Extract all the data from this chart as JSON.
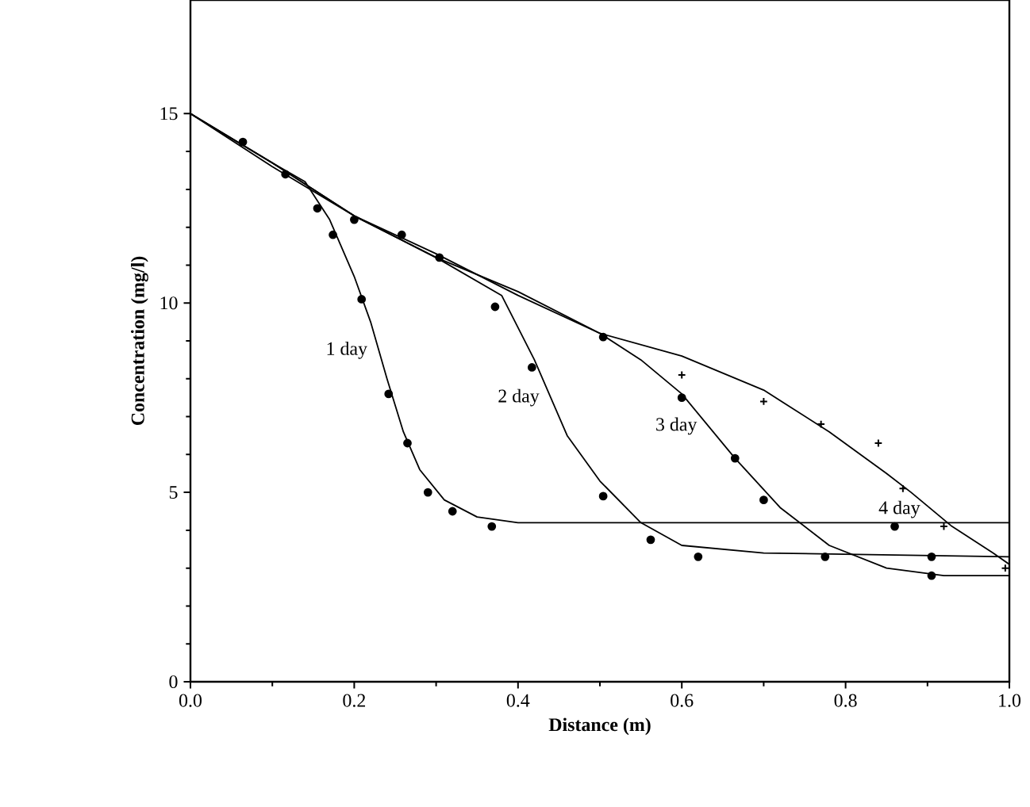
{
  "chart_data": {
    "type": "line",
    "xlabel": "Distance  (m)",
    "ylabel": "Concentration  (mg/l)",
    "xlim": [
      0,
      1.0
    ],
    "ylim": [
      0,
      18
    ],
    "xticks": [
      {
        "value": 0,
        "label": "0.0"
      },
      0.2,
      0.4,
      0.6,
      0.8,
      {
        "value": 1.0,
        "label": "1.0"
      }
    ],
    "yticks": [
      0,
      5,
      10,
      15
    ],
    "line_style": "solid",
    "series": [
      {
        "name": "1 day",
        "color": "#000000",
        "marker": "none",
        "x": [
          0,
          0.1,
          0.14,
          0.17,
          0.2,
          0.22,
          0.24,
          0.26,
          0.28,
          0.31,
          0.35,
          0.4,
          0.5,
          1.0
        ],
        "values": [
          15,
          13.7,
          13.2,
          12.2,
          10.7,
          9.5,
          8.0,
          6.6,
          5.6,
          4.8,
          4.35,
          4.2,
          4.2,
          4.2
        ]
      },
      {
        "name": "2 day",
        "color": "#000000",
        "marker": "none",
        "x": [
          0,
          0.1,
          0.2,
          0.3,
          0.38,
          0.42,
          0.46,
          0.5,
          0.55,
          0.6,
          0.7,
          1.0
        ],
        "values": [
          15,
          13.7,
          12.3,
          11.2,
          10.2,
          8.5,
          6.5,
          5.3,
          4.2,
          3.6,
          3.4,
          3.3
        ]
      },
      {
        "name": "3 day",
        "color": "#000000",
        "marker": "none",
        "x": [
          0,
          0.1,
          0.2,
          0.3,
          0.4,
          0.5,
          0.55,
          0.6,
          0.665,
          0.72,
          0.78,
          0.85,
          0.92,
          1.0
        ],
        "values": [
          15,
          13.7,
          12.3,
          11.2,
          10.3,
          9.2,
          8.5,
          7.6,
          5.9,
          4.6,
          3.6,
          3.0,
          2.8,
          2.8
        ]
      },
      {
        "name": "4 day",
        "color": "#000000",
        "marker": "none",
        "x": [
          0,
          0.1,
          0.2,
          0.3,
          0.4,
          0.5,
          0.6,
          0.7,
          0.78,
          0.85,
          0.88,
          0.93,
          0.98,
          1.0
        ],
        "values": [
          15,
          13.6,
          12.3,
          11.3,
          10.2,
          9.2,
          8.6,
          7.7,
          6.6,
          5.5,
          5.0,
          4.1,
          3.4,
          3.1
        ]
      },
      {
        "type": "scatter",
        "color": "#000000",
        "marker": "circle",
        "x": [
          0.155,
          0.174,
          0.209,
          0.242,
          0.265,
          0.29,
          0.32,
          0.368,
          0.86
        ],
        "values": [
          12.5,
          11.8,
          10.1,
          7.6,
          6.3,
          5.0,
          4.5,
          4.1,
          4.1
        ]
      },
      {
        "type": "scatter",
        "color": "#000000",
        "marker": "circle",
        "x": [
          0.372,
          0.417,
          0.504,
          0.562,
          0.62,
          0.905
        ],
        "values": [
          9.9,
          8.3,
          4.9,
          3.75,
          3.3,
          3.3
        ]
      },
      {
        "type": "scatter",
        "color": "#000000",
        "marker": "circle",
        "x": [
          0.064,
          0.116,
          0.2,
          0.258,
          0.304,
          0.504,
          0.6,
          0.665,
          0.7,
          0.775,
          0.905
        ],
        "values": [
          14.25,
          13.4,
          12.2,
          11.8,
          11.2,
          9.1,
          7.5,
          5.9,
          4.8,
          3.3,
          2.8
        ]
      },
      {
        "type": "scatter",
        "color": "#000000",
        "marker": "cross",
        "x": [
          0.6,
          0.7,
          0.77,
          0.84,
          0.87,
          0.92,
          0.995
        ],
        "values": [
          8.1,
          7.4,
          6.8,
          6.3,
          5.1,
          4.1,
          3.0
        ]
      }
    ]
  }
}
